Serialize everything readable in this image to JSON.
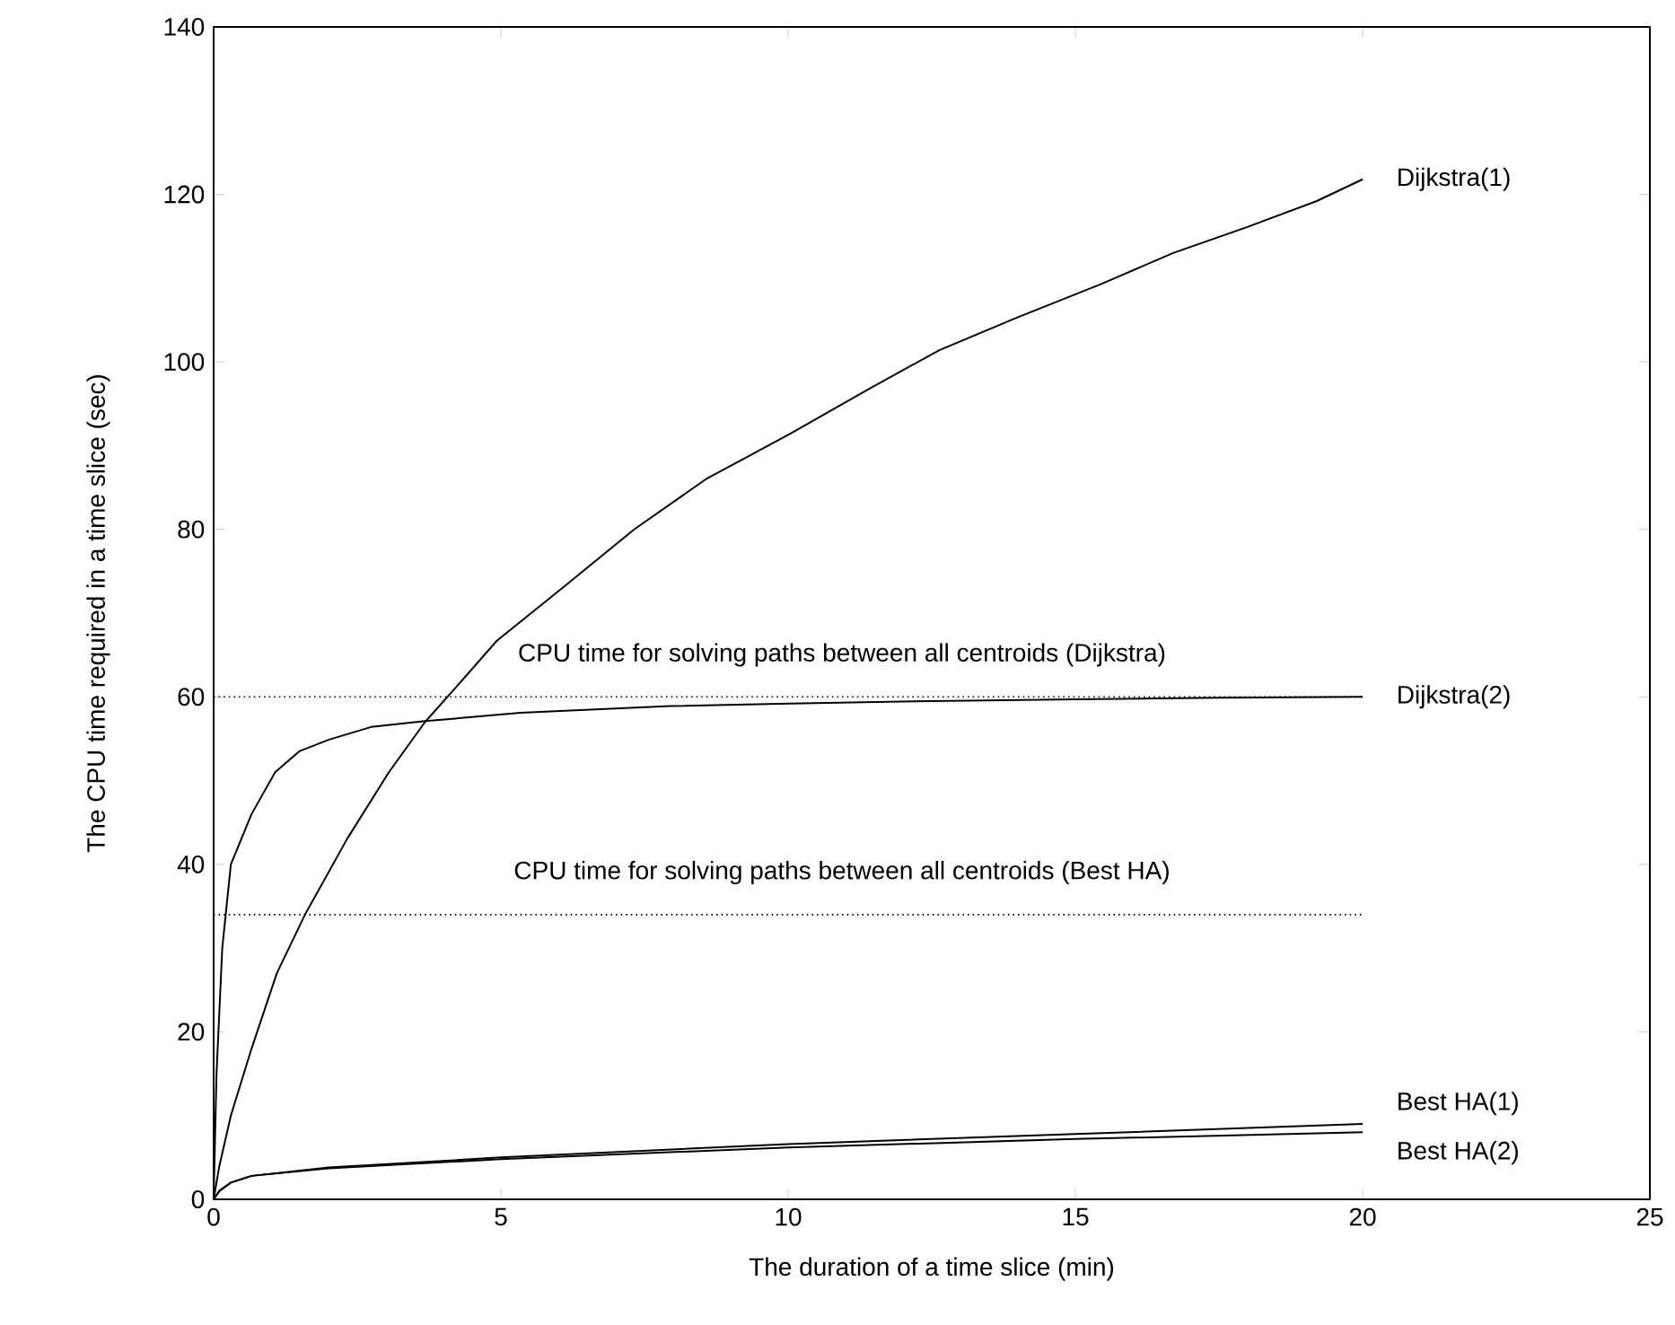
{
  "chart_data": {
    "type": "line",
    "xlabel": "The duration of a time slice (min)",
    "ylabel": "The CPU time required in a time slice (sec)",
    "xlim": [
      0,
      25
    ],
    "ylim": [
      0,
      140
    ],
    "xticks": [
      0,
      5,
      10,
      15,
      20,
      25
    ],
    "yticks": [
      0,
      20,
      40,
      60,
      80,
      100,
      120,
      140
    ],
    "grid": false,
    "legend": false,
    "marker": "none",
    "line_style": "solid",
    "ref_lines": [
      {
        "axis": "y",
        "value": 60,
        "label": "CPU time for solving paths between all centroids (Dijkstra)",
        "line_style": "dotted",
        "color": "#000000"
      },
      {
        "axis": "y",
        "value": 34,
        "label": "CPU time for solving paths between all centroids (Best HA)",
        "line_style": "dotted",
        "color": "#000000"
      }
    ],
    "series": [
      {
        "name": "Dijkstra(1)",
        "color": "#000000",
        "x": [
          0,
          0.1,
          0.3,
          0.66,
          1.1,
          1.59,
          2.32,
          3.05,
          3.68,
          4.2,
          4.93,
          6.07,
          7.32,
          8.57,
          10.03,
          11.39,
          12.63,
          13.99,
          15.45,
          16.7,
          17.95,
          19.2,
          20
        ],
        "values": [
          0,
          4,
          10,
          18,
          27,
          34,
          43,
          51,
          57,
          61,
          66.7,
          73,
          80,
          86,
          91.4,
          96.7,
          101.4,
          105.3,
          109.3,
          113,
          116,
          119.2,
          121.8
        ]
      },
      {
        "name": "Dijkstra(2)",
        "color": "#000000",
        "x": [
          0,
          0.05,
          0.15,
          0.3,
          0.66,
          1.07,
          1.49,
          2.01,
          2.74,
          3.68,
          5.34,
          7.95,
          10.03,
          12.5,
          15,
          17.5,
          20
        ],
        "values": [
          0,
          15,
          30,
          40,
          46,
          51,
          53.5,
          54.9,
          56.4,
          57.1,
          58.1,
          58.9,
          59.2,
          59.5,
          59.7,
          59.9,
          60
        ]
      },
      {
        "name": "Best HA(1)",
        "color": "#000000",
        "x": [
          0,
          0.1,
          0.3,
          0.66,
          2,
          5,
          10,
          15,
          20
        ],
        "values": [
          0,
          1,
          2,
          2.8,
          3.8,
          5,
          6.6,
          7.8,
          9
        ]
      },
      {
        "name": "Best HA(2)",
        "color": "#000000",
        "x": [
          0,
          0.1,
          0.3,
          0.66,
          2,
          5,
          10,
          15,
          20
        ],
        "values": [
          0,
          1,
          2,
          2.8,
          3.7,
          4.8,
          6.2,
          7.2,
          8
        ]
      }
    ]
  }
}
